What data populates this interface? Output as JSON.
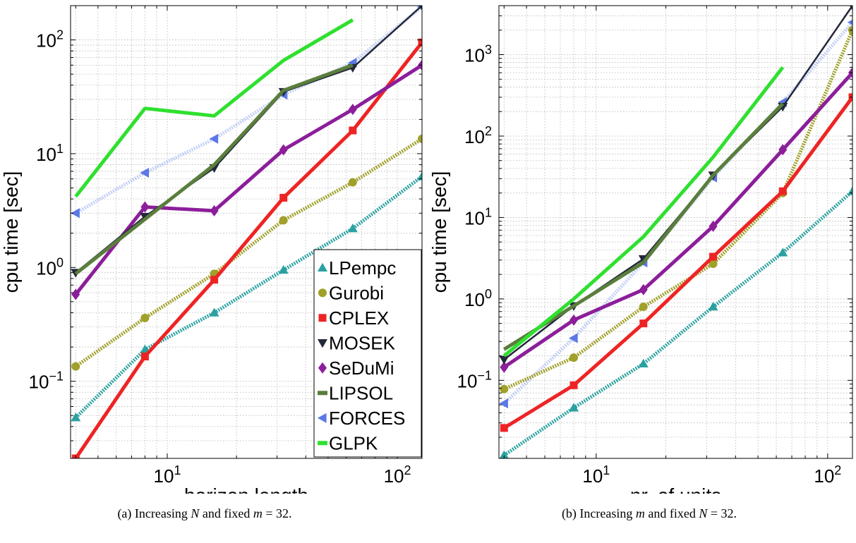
{
  "colors": {
    "LPempc": "#2aa1a0",
    "Gurobi": "#a0a02a",
    "CPLEX": "#ee2424",
    "MOSEK": "#23283a",
    "SeDuMi": "#8c1e9a",
    "LIPSOL": "#5a7e3c",
    "FORCES": "#5a78e6",
    "GLPK": "#2fe02f",
    "grid": "#b5b5b5",
    "axis": "#000000"
  },
  "chart_data": [
    {
      "type": "line",
      "xlabel": "horizon length",
      "ylabel": "cpu time [sec]",
      "xscale": "log",
      "yscale": "log",
      "xlim": [
        3.8,
        128
      ],
      "ylim": [
        0.021,
        200
      ],
      "xticks": [
        {
          "value": 10,
          "base": "10",
          "exp": "1"
        },
        {
          "value": 100,
          "base": "10",
          "exp": "2"
        }
      ],
      "yticks": [
        {
          "value": 0.1,
          "base": "10",
          "exp": "−1"
        },
        {
          "value": 1,
          "base": "10",
          "exp": "0"
        },
        {
          "value": 10,
          "base": "10",
          "exp": "1"
        },
        {
          "value": 100,
          "base": "10",
          "exp": "2"
        }
      ],
      "grid": true,
      "legend_position": "bottom-right",
      "legend": [
        "LPempc",
        "Gurobi",
        "CPLEX",
        "MOSEK",
        "SeDuMi",
        "LIPSOL",
        "FORCES",
        "GLPK"
      ],
      "series": [
        {
          "name": "LPempc",
          "style": "dotted",
          "marker": "triangle-up",
          "x": [
            4,
            8,
            16,
            32,
            64,
            128
          ],
          "y": [
            0.048,
            0.19,
            0.4,
            0.95,
            2.2,
            6.3
          ]
        },
        {
          "name": "Gurobi",
          "style": "dotted",
          "marker": "circle",
          "x": [
            4,
            8,
            16,
            32,
            64,
            128
          ],
          "y": [
            0.135,
            0.36,
            0.88,
            2.6,
            5.6,
            13.5
          ]
        },
        {
          "name": "CPLEX",
          "style": "solid",
          "marker": "square",
          "x": [
            4,
            8,
            16,
            32,
            64,
            128
          ],
          "y": [
            0.021,
            0.165,
            0.78,
            4.1,
            16,
            95
          ]
        },
        {
          "name": "MOSEK",
          "style": "solid",
          "marker": "triangle-down",
          "x": [
            4,
            8,
            16,
            32,
            64,
            128
          ],
          "y": [
            0.9,
            2.8,
            7.5,
            35,
            57,
            200
          ]
        },
        {
          "name": "SeDuMi",
          "style": "solid",
          "marker": "diamond",
          "x": [
            4,
            8,
            16,
            32,
            64,
            128
          ],
          "y": [
            0.58,
            3.4,
            3.15,
            10.8,
            24.5,
            60
          ]
        },
        {
          "name": "LIPSOL",
          "style": "solid",
          "marker": "none",
          "x": [
            4,
            16,
            32,
            64
          ],
          "y": [
            0.88,
            8,
            36,
            60
          ]
        },
        {
          "name": "FORCES",
          "style": "dotted",
          "marker": "triangle-left",
          "x": [
            4,
            8,
            16,
            32,
            64,
            128
          ],
          "y": [
            3.0,
            6.8,
            13.5,
            33,
            63,
            195
          ]
        },
        {
          "name": "GLPK",
          "style": "solid",
          "marker": "none",
          "x": [
            4,
            8,
            16,
            32,
            64
          ],
          "y": [
            4.2,
            25,
            21.5,
            66,
            150
          ]
        }
      ]
    },
    {
      "type": "line",
      "xlabel": "nr. of units",
      "ylabel": "cpu time [sec]",
      "xscale": "log",
      "yscale": "log",
      "xlim": [
        3.8,
        128
      ],
      "ylim": [
        0.011,
        4000
      ],
      "xticks": [
        {
          "value": 10,
          "base": "10",
          "exp": "1"
        },
        {
          "value": 100,
          "base": "10",
          "exp": "2"
        }
      ],
      "yticks": [
        {
          "value": 0.1,
          "base": "10",
          "exp": "−1"
        },
        {
          "value": 1,
          "base": "10",
          "exp": "0"
        },
        {
          "value": 10,
          "base": "10",
          "exp": "1"
        },
        {
          "value": 100,
          "base": "10",
          "exp": "2"
        },
        {
          "value": 1000,
          "base": "10",
          "exp": "3"
        }
      ],
      "grid": true,
      "series": [
        {
          "name": "LPempc",
          "style": "dotted",
          "marker": "triangle-up",
          "x": [
            4,
            8,
            16,
            32,
            64,
            128
          ],
          "y": [
            0.012,
            0.046,
            0.16,
            0.8,
            3.7,
            21
          ]
        },
        {
          "name": "Gurobi",
          "style": "dotted",
          "marker": "circle",
          "x": [
            4,
            8,
            16,
            32,
            64,
            128
          ],
          "y": [
            0.078,
            0.19,
            0.8,
            2.7,
            20,
            2000
          ]
        },
        {
          "name": "CPLEX",
          "style": "solid",
          "marker": "square",
          "x": [
            4,
            8,
            16,
            32,
            64,
            128
          ],
          "y": [
            0.026,
            0.087,
            0.5,
            3.3,
            21,
            300
          ]
        },
        {
          "name": "MOSEK",
          "style": "solid",
          "marker": "triangle-down",
          "x": [
            4,
            8,
            16,
            32,
            64,
            128
          ],
          "y": [
            0.18,
            0.82,
            3.1,
            33,
            230,
            4000
          ]
        },
        {
          "name": "SeDuMi",
          "style": "solid",
          "marker": "diamond",
          "x": [
            4,
            8,
            16,
            32,
            64,
            128
          ],
          "y": [
            0.145,
            0.55,
            1.3,
            7.8,
            68,
            600
          ]
        },
        {
          "name": "LIPSOL",
          "style": "solid",
          "marker": "none",
          "x": [
            4,
            16,
            32,
            64
          ],
          "y": [
            0.24,
            2.8,
            33,
            250
          ]
        },
        {
          "name": "FORCES",
          "style": "dotted",
          "marker": "triangle-left",
          "x": [
            4,
            8,
            16,
            32,
            64,
            128
          ],
          "y": [
            0.052,
            0.33,
            2.8,
            31,
            260,
            2500
          ]
        },
        {
          "name": "GLPK",
          "style": "solid",
          "marker": "none",
          "x": [
            4,
            8,
            16,
            32,
            64
          ],
          "y": [
            0.2,
            1.0,
            5.8,
            55,
            700
          ]
        }
      ]
    }
  ],
  "captions": {
    "a": {
      "prefix": "(a) Increasing ",
      "var1": "N",
      "mid": " and fixed ",
      "var2": "m",
      "suffix": " = 32."
    },
    "b": {
      "prefix": "(b) Increasing ",
      "var1": "m",
      "mid": " and fixed ",
      "var2": "N",
      "suffix": " = 32."
    }
  }
}
